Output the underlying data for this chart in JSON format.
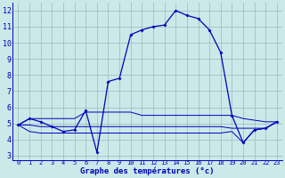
{
  "hours": [
    0,
    1,
    2,
    3,
    4,
    5,
    6,
    7,
    8,
    9,
    10,
    11,
    12,
    13,
    14,
    15,
    16,
    17,
    18,
    19,
    20,
    21,
    22,
    23
  ],
  "temp_line": [
    4.9,
    5.3,
    5.1,
    4.8,
    4.5,
    4.6,
    5.8,
    3.2,
    7.6,
    7.8,
    10.5,
    10.8,
    11.0,
    11.1,
    12.0,
    11.7,
    11.5,
    10.8,
    9.4,
    5.5,
    3.8,
    4.6,
    4.7,
    5.1
  ],
  "flat_high": [
    4.9,
    5.3,
    5.3,
    5.3,
    5.3,
    5.3,
    5.7,
    5.7,
    5.7,
    5.7,
    5.7,
    5.5,
    5.5,
    5.5,
    5.5,
    5.5,
    5.5,
    5.5,
    5.5,
    5.5,
    5.3,
    5.2,
    5.1,
    5.1
  ],
  "flat_mid": [
    4.9,
    4.9,
    4.8,
    4.8,
    4.8,
    4.8,
    4.8,
    4.8,
    4.8,
    4.8,
    4.8,
    4.8,
    4.8,
    4.8,
    4.8,
    4.8,
    4.8,
    4.8,
    4.8,
    4.7,
    4.7,
    4.7,
    4.7,
    5.1
  ],
  "flat_low": [
    4.9,
    4.5,
    4.4,
    4.4,
    4.4,
    4.4,
    4.4,
    4.4,
    4.4,
    4.4,
    4.4,
    4.4,
    4.4,
    4.4,
    4.4,
    4.4,
    4.4,
    4.4,
    4.4,
    4.5,
    3.8,
    4.6,
    4.7,
    5.1
  ],
  "bg_color": "#cce8e8",
  "line_color": "#0000bb",
  "grid_color": "#99bbbb",
  "axis_bar_color": "#3333aa",
  "xlabel": "Graphe des températures (°c)",
  "yticks": [
    3,
    4,
    5,
    6,
    7,
    8,
    9,
    10,
    11,
    12
  ],
  "xtick_labels": [
    "0",
    "1",
    "2",
    "3",
    "4",
    "5",
    "6",
    "7",
    "8",
    "9",
    "10",
    "11",
    "12",
    "13",
    "14",
    "15",
    "16",
    "17",
    "18",
    "19",
    "20",
    "21",
    "22",
    "23"
  ],
  "xlim": [
    -0.5,
    23.5
  ],
  "ylim": [
    2.7,
    12.5
  ]
}
